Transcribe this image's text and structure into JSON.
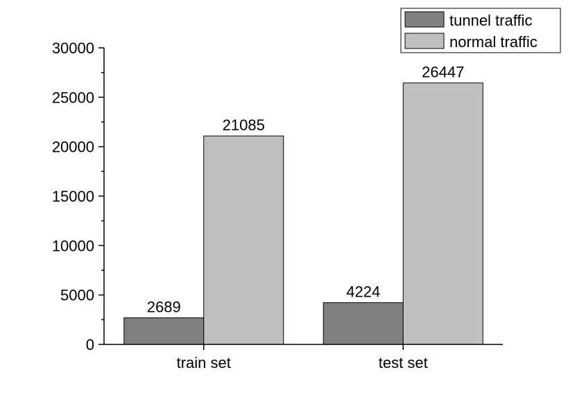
{
  "chart_data": {
    "type": "bar",
    "title": "",
    "xlabel": "",
    "ylabel": "",
    "categories": [
      "train set",
      "test set"
    ],
    "series": [
      {
        "name": "tunnel traffic",
        "values": [
          2689,
          4224
        ],
        "color": "#808080"
      },
      {
        "name": "normal traffic",
        "values": [
          21085,
          26447
        ],
        "color": "#c0c0c0"
      }
    ],
    "data_labels": [
      [
        "2689",
        "4224"
      ],
      [
        "21085",
        "26447"
      ]
    ],
    "ylim": [
      0,
      30000
    ],
    "yticks": [
      0,
      5000,
      10000,
      15000,
      20000,
      25000,
      30000
    ],
    "ytick_labels": [
      "0",
      "5000",
      "10000",
      "15000",
      "20000",
      "25000",
      "30000"
    ],
    "grid": false,
    "legend_position": "top-right"
  }
}
